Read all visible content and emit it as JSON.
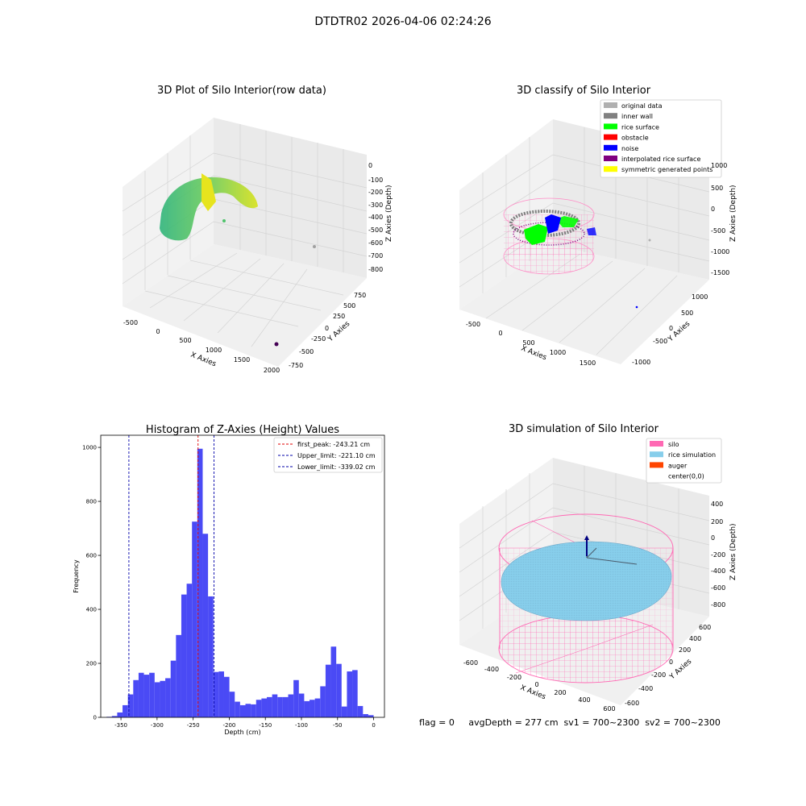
{
  "suptitle": "DTDTR02 2026-04-06 02:24:26",
  "colors": {
    "hist_bar": "#4a4af5",
    "peak_line": "#e00000",
    "limit_line": "#0000aa",
    "original": "#b0b0b0",
    "inner_wall": "#808080",
    "rice_surface": "#00ff00",
    "obstacle": "#ff0000",
    "noise": "#0000ff",
    "interpolated": "#800080",
    "symmetric": "#ffff00",
    "silo": "#ff69b4",
    "rice_sim": "#87ceeb",
    "auger": "#ff4500"
  },
  "status_line": "flag = 0     avgDepth = 277 cm  sv1 = 700~2300  sv2 = 700~2300",
  "chart_data": [
    {
      "type": "scatter",
      "title": "3D Plot of Silo Interior(row data)",
      "xlabel": "X Axies",
      "ylabel": "Y Axies",
      "zlabel": "Z Axies (Depth)",
      "x_ticks": [
        "-500",
        "0",
        "500",
        "1000",
        "1500",
        "2000"
      ],
      "y_ticks": [
        "-750",
        "-500",
        "-250",
        "0",
        "250",
        "500",
        "750"
      ],
      "z_ticks": [
        "0",
        "-100",
        "-200",
        "-300",
        "-400",
        "-500",
        "-600",
        "-700",
        "-800"
      ]
    },
    {
      "type": "scatter",
      "title": "3D classify of Silo Interior",
      "xlabel": "X Axies",
      "ylabel": "Y Axies",
      "zlabel": "Z Axies (Depth)",
      "x_ticks": [
        "-500",
        "0",
        "500",
        "1000",
        "1500"
      ],
      "y_ticks": [
        "-1000",
        "-500",
        "0",
        "500",
        "1000"
      ],
      "z_ticks": [
        "1000",
        "500",
        "0",
        "-500",
        "-1000",
        "-1500"
      ],
      "legend": [
        {
          "label": "original data",
          "color_key": "original"
        },
        {
          "label": "inner wall",
          "color_key": "inner_wall"
        },
        {
          "label": "rice surface",
          "color_key": "rice_surface"
        },
        {
          "label": "obstacle",
          "color_key": "obstacle"
        },
        {
          "label": "noise",
          "color_key": "noise"
        },
        {
          "label": "interpolated rice surface",
          "color_key": "interpolated"
        },
        {
          "label": "symmetric generated points",
          "color_key": "symmetric"
        }
      ]
    },
    {
      "type": "bar",
      "title": "Histogram of Z-Axies (Height) Values",
      "xlabel": "Depth (cm)",
      "ylabel": "Frequency",
      "xlim": [
        -378,
        15
      ],
      "ylim": [
        0,
        1045
      ],
      "x_ticks": [
        -350,
        -300,
        -250,
        -200,
        -150,
        -100,
        -50,
        0
      ],
      "y_ticks": [
        0,
        200,
        400,
        600,
        800,
        1000
      ],
      "bin_start": -370,
      "bin_width": 7.4,
      "values": [
        2,
        5,
        18,
        45,
        85,
        138,
        165,
        158,
        165,
        130,
        135,
        145,
        210,
        305,
        455,
        495,
        725,
        995,
        680,
        448,
        168,
        170,
        150,
        95,
        58,
        45,
        50,
        48,
        65,
        70,
        75,
        85,
        75,
        75,
        85,
        138,
        88,
        60,
        65,
        70,
        115,
        195,
        262,
        198,
        40,
        170,
        175,
        42,
        12,
        8
      ],
      "vlines": [
        {
          "label": "first_peak: -243.21 cm",
          "x": -243.21,
          "style": "peak"
        },
        {
          "label": "Upper_limit: -221.10 cm",
          "x": -221.1,
          "style": "limit"
        },
        {
          "label": "Lower_limit: -339.02 cm",
          "x": -339.02,
          "style": "limit"
        }
      ]
    },
    {
      "type": "scatter",
      "title": "3D simulation of Silo Interior",
      "xlabel": "X Axies",
      "ylabel": "Y Axies",
      "zlabel": "Z Axies (Depth)",
      "x_ticks": [
        "-600",
        "-400",
        "-200",
        "0",
        "200",
        "400",
        "600"
      ],
      "y_ticks": [
        "-600",
        "-400",
        "-200",
        "0",
        "200",
        "400",
        "600"
      ],
      "z_ticks": [
        "400",
        "200",
        "0",
        "-200",
        "-400",
        "-600",
        "-800"
      ],
      "legend": [
        {
          "label": "silo",
          "color_key": "silo"
        },
        {
          "label": "rice simulation",
          "color_key": "rice_sim"
        },
        {
          "label": "auger",
          "color_key": "auger"
        },
        {
          "label": "center(0,0)",
          "color_key": ""
        }
      ]
    }
  ]
}
